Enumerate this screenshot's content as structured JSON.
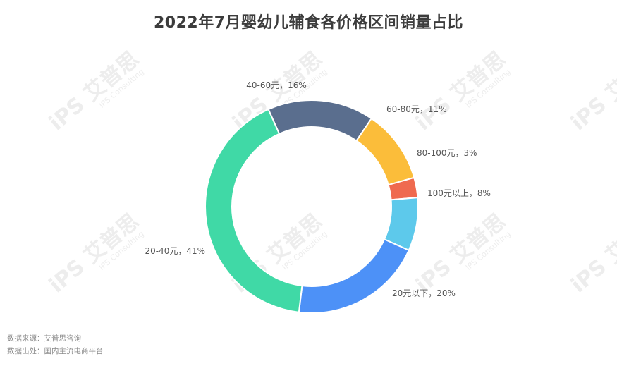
{
  "chart_data": {
    "type": "pie",
    "title": "2022年7月婴幼儿辅食各价格区间销量占比",
    "labels": [
      "40-60元",
      "60-80元",
      "80-100元",
      "100元以上",
      "20元以下",
      "20-40元"
    ],
    "values": [
      16,
      11,
      3,
      8,
      20,
      41
    ],
    "display_labels": [
      "40-60元，16%",
      "60-80元，11%",
      "80-100元，3%",
      "100元以上，8%",
      "20元以下，20%",
      "20-40元，41%"
    ],
    "colors": [
      "#5a6e8e",
      "#fbbd3a",
      "#ef6a4f",
      "#5dc9eb",
      "#4d91f7",
      "#40d9a6"
    ],
    "start_angle_deg": -24,
    "donut": true
  },
  "source": {
    "line1": "数据来源：艾普思咨询",
    "line2": "数据出处：国内主流电商平台"
  },
  "watermark": {
    "brand": "艾普思",
    "sub": "IPS Consulting",
    "logo": "iPS"
  }
}
